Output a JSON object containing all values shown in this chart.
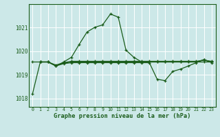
{
  "title": "Graphe pression niveau de la mer (hPa)",
  "bg_color": "#cce8e8",
  "grid_color": "#ffffff",
  "line_color": "#1a5c1a",
  "xlim": [
    -0.5,
    23.5
  ],
  "ylim": [
    1017.65,
    1022.0
  ],
  "yticks": [
    1018,
    1019,
    1020,
    1021
  ],
  "xticks": [
    0,
    1,
    2,
    3,
    4,
    5,
    6,
    7,
    8,
    9,
    10,
    11,
    12,
    13,
    14,
    15,
    16,
    17,
    18,
    19,
    20,
    21,
    22,
    23
  ],
  "series1_x": [
    0,
    1,
    2,
    3,
    4,
    5,
    6,
    7,
    8,
    9,
    10,
    11,
    12,
    13,
    14,
    15,
    16,
    17,
    18,
    19,
    20,
    21,
    22,
    23
  ],
  "series1_y": [
    1018.2,
    1019.55,
    1019.55,
    1019.38,
    1019.55,
    1019.75,
    1020.3,
    1020.82,
    1021.02,
    1021.12,
    1021.58,
    1021.45,
    1020.05,
    1019.75,
    1019.55,
    1019.55,
    1019.55,
    1019.55,
    1019.55,
    1019.55,
    1019.55,
    1019.55,
    1019.65,
    1019.55
  ],
  "series2_x": [
    0,
    1,
    2,
    3,
    4,
    5,
    6,
    7,
    8,
    9,
    10,
    11,
    12,
    13,
    14,
    15,
    16,
    17,
    18,
    19,
    20,
    21,
    22,
    23
  ],
  "series2_y": [
    1019.55,
    1019.55,
    1019.55,
    1019.4,
    1019.5,
    1019.55,
    1019.55,
    1019.55,
    1019.55,
    1019.55,
    1019.55,
    1019.55,
    1019.55,
    1019.55,
    1019.55,
    1019.55,
    1019.55,
    1019.55,
    1019.55,
    1019.55,
    1019.55,
    1019.55,
    1019.55,
    1019.55
  ],
  "series3_x": [
    1,
    2,
    3,
    4,
    5,
    6,
    7,
    8,
    9,
    10,
    11,
    12,
    13,
    14,
    15,
    16,
    17,
    18,
    19,
    20,
    21,
    22,
    23
  ],
  "series3_y": [
    1019.55,
    1019.55,
    1019.42,
    1019.52,
    1019.58,
    1019.58,
    1019.58,
    1019.58,
    1019.58,
    1019.58,
    1019.58,
    1019.58,
    1019.58,
    1019.58,
    1019.58,
    1019.58,
    1019.58,
    1019.58,
    1019.58,
    1019.58,
    1019.58,
    1019.62,
    1019.58
  ],
  "series4_x": [
    1,
    2,
    3,
    4,
    5,
    6,
    7,
    8,
    9,
    10,
    11,
    12,
    13,
    14,
    15,
    16,
    17,
    18,
    19,
    20,
    21,
    22,
    23
  ],
  "series4_y": [
    1019.55,
    1019.55,
    1019.38,
    1019.48,
    1019.52,
    1019.52,
    1019.52,
    1019.52,
    1019.52,
    1019.52,
    1019.52,
    1019.52,
    1019.52,
    1019.52,
    1019.52,
    1018.82,
    1018.76,
    1019.15,
    1019.25,
    1019.38,
    1019.52,
    1019.65,
    1019.52
  ]
}
